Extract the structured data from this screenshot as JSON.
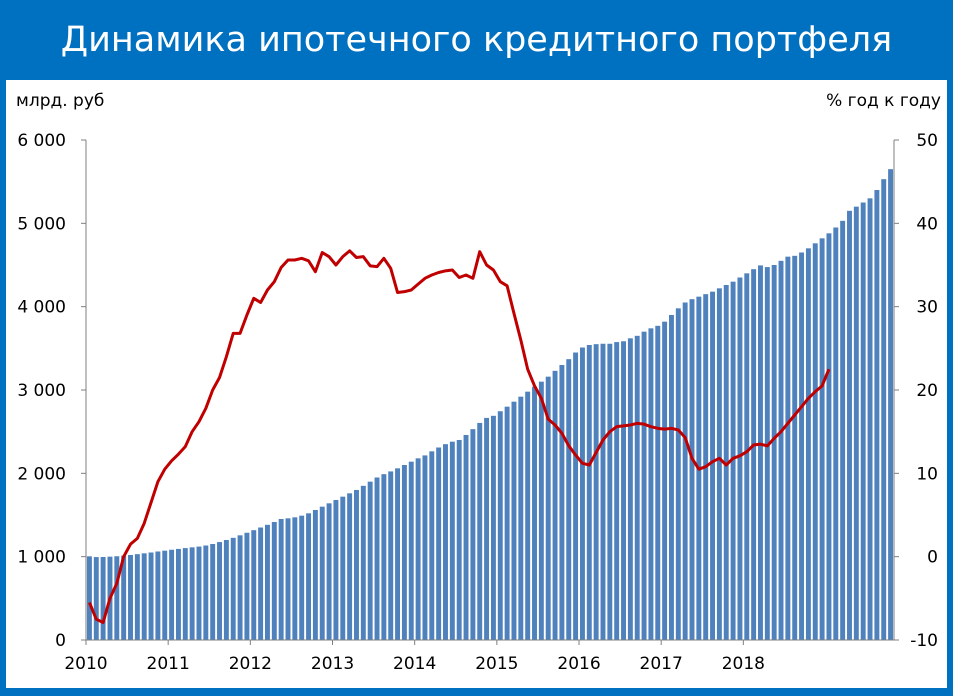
{
  "title": "Динамика ипотечного кредитного портфеля",
  "chart_data": {
    "type": "bar+line",
    "left_axis_label": "млрд. руб",
    "right_axis_label": "% год к году",
    "left_ticks": [
      "0",
      "1 000",
      "2 000",
      "3 000",
      "4 000",
      "5 000",
      "6 000"
    ],
    "left_ylim": [
      0,
      6000
    ],
    "right_ticks": [
      "-10",
      "0",
      "10",
      "20",
      "30",
      "40",
      "50"
    ],
    "right_ylim": [
      -10,
      50
    ],
    "x_labels": [
      "2010",
      "2011",
      "2012",
      "2013",
      "2014",
      "2015",
      "2016",
      "2017",
      "2018"
    ],
    "grid": false,
    "colors": {
      "bars": "#4f81bd",
      "line": "#c00000",
      "frame": "#0070c0"
    },
    "series": [
      {
        "axis": "left",
        "kind": "bar",
        "start": "2010-01",
        "frequency": "monthly",
        "values": [
          1004,
          995,
          996,
          1000,
          1005,
          1012,
          1020,
          1030,
          1040,
          1050,
          1062,
          1072,
          1083,
          1093,
          1103,
          1112,
          1121,
          1134,
          1152,
          1175,
          1200,
          1226,
          1256,
          1287,
          1318,
          1350,
          1382,
          1416,
          1452,
          1460,
          1472,
          1492,
          1520,
          1560,
          1600,
          1640,
          1680,
          1720,
          1760,
          1800,
          1850,
          1900,
          1950,
          1990,
          2023,
          2060,
          2100,
          2140,
          2180,
          2215,
          2264,
          2310,
          2350,
          2380,
          2400,
          2460,
          2530,
          2605,
          2665,
          2690,
          2745,
          2800,
          2860,
          2920,
          2980,
          3040,
          3100,
          3160,
          3230,
          3300,
          3370,
          3450,
          3510,
          3540,
          3550,
          3555,
          3555,
          3575,
          3585,
          3620,
          3650,
          3700,
          3740,
          3770,
          3820,
          3900,
          3980,
          4050,
          4090,
          4120,
          4150,
          4180,
          4220,
          4260,
          4300,
          4350,
          4400,
          4450,
          4495,
          4475,
          4500,
          4550,
          4600,
          4610,
          4650,
          4700,
          4760,
          4820,
          4880,
          4950,
          5030,
          5150,
          5200,
          5250,
          5300,
          5400,
          5530,
          5650
        ]
      },
      {
        "axis": "right",
        "kind": "line",
        "start": "2010-01",
        "frequency": "monthly",
        "values": [
          -5.5,
          -7.5,
          -7.9,
          -5,
          -3.2,
          0,
          1.5,
          2.2,
          4,
          6.5,
          9,
          10.5,
          11.5,
          12.3,
          13.2,
          15,
          16.2,
          17.8,
          20,
          21.5,
          24,
          26.8,
          26.8,
          29,
          31,
          30.5,
          32,
          33,
          34.7,
          35.6,
          35.6,
          35.8,
          35.5,
          34.2,
          36.5,
          36,
          35,
          36,
          36.7,
          35.9,
          36,
          34.9,
          34.8,
          35.8,
          34.6,
          31.7,
          31.8,
          32,
          32.7,
          33.4,
          33.8,
          34.1,
          34.3,
          34.4,
          33.5,
          33.8,
          33.4,
          36.6,
          35,
          34.4,
          33,
          32.5,
          29.2,
          26,
          22.5,
          20.5,
          19,
          16.5,
          15.8,
          14.8,
          13.3,
          12.2,
          11.2,
          11,
          12.5,
          14,
          15,
          15.6,
          15.7,
          15.8,
          16,
          15.9,
          15.6,
          15.4,
          15.3,
          15.4,
          15.2,
          14.3,
          11.8,
          10.5,
          10.8,
          11.4,
          11.8,
          11,
          11.8,
          12.1,
          12.6,
          13.4,
          13.5,
          13.3,
          14.2,
          15,
          16,
          17,
          18,
          19,
          19.8,
          20.5,
          22.5
        ]
      }
    ]
  }
}
